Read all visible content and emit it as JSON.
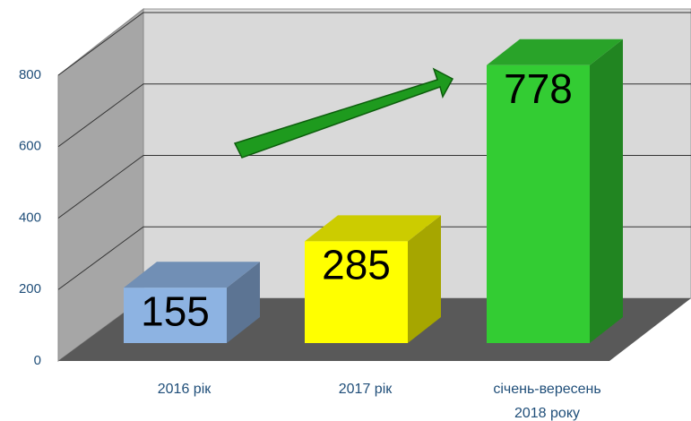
{
  "chart_data": {
    "type": "bar3d",
    "categories": [
      "2016 рік",
      "2017 рік",
      "січень-вересень\n2018 року"
    ],
    "values": [
      155,
      285,
      778
    ],
    "colors": [
      "#8db3e2",
      "#ffff00",
      "#33cc33"
    ],
    "ylim": [
      0,
      800
    ],
    "yticks": [
      0,
      200,
      400,
      600,
      800
    ],
    "grid": true
  }
}
